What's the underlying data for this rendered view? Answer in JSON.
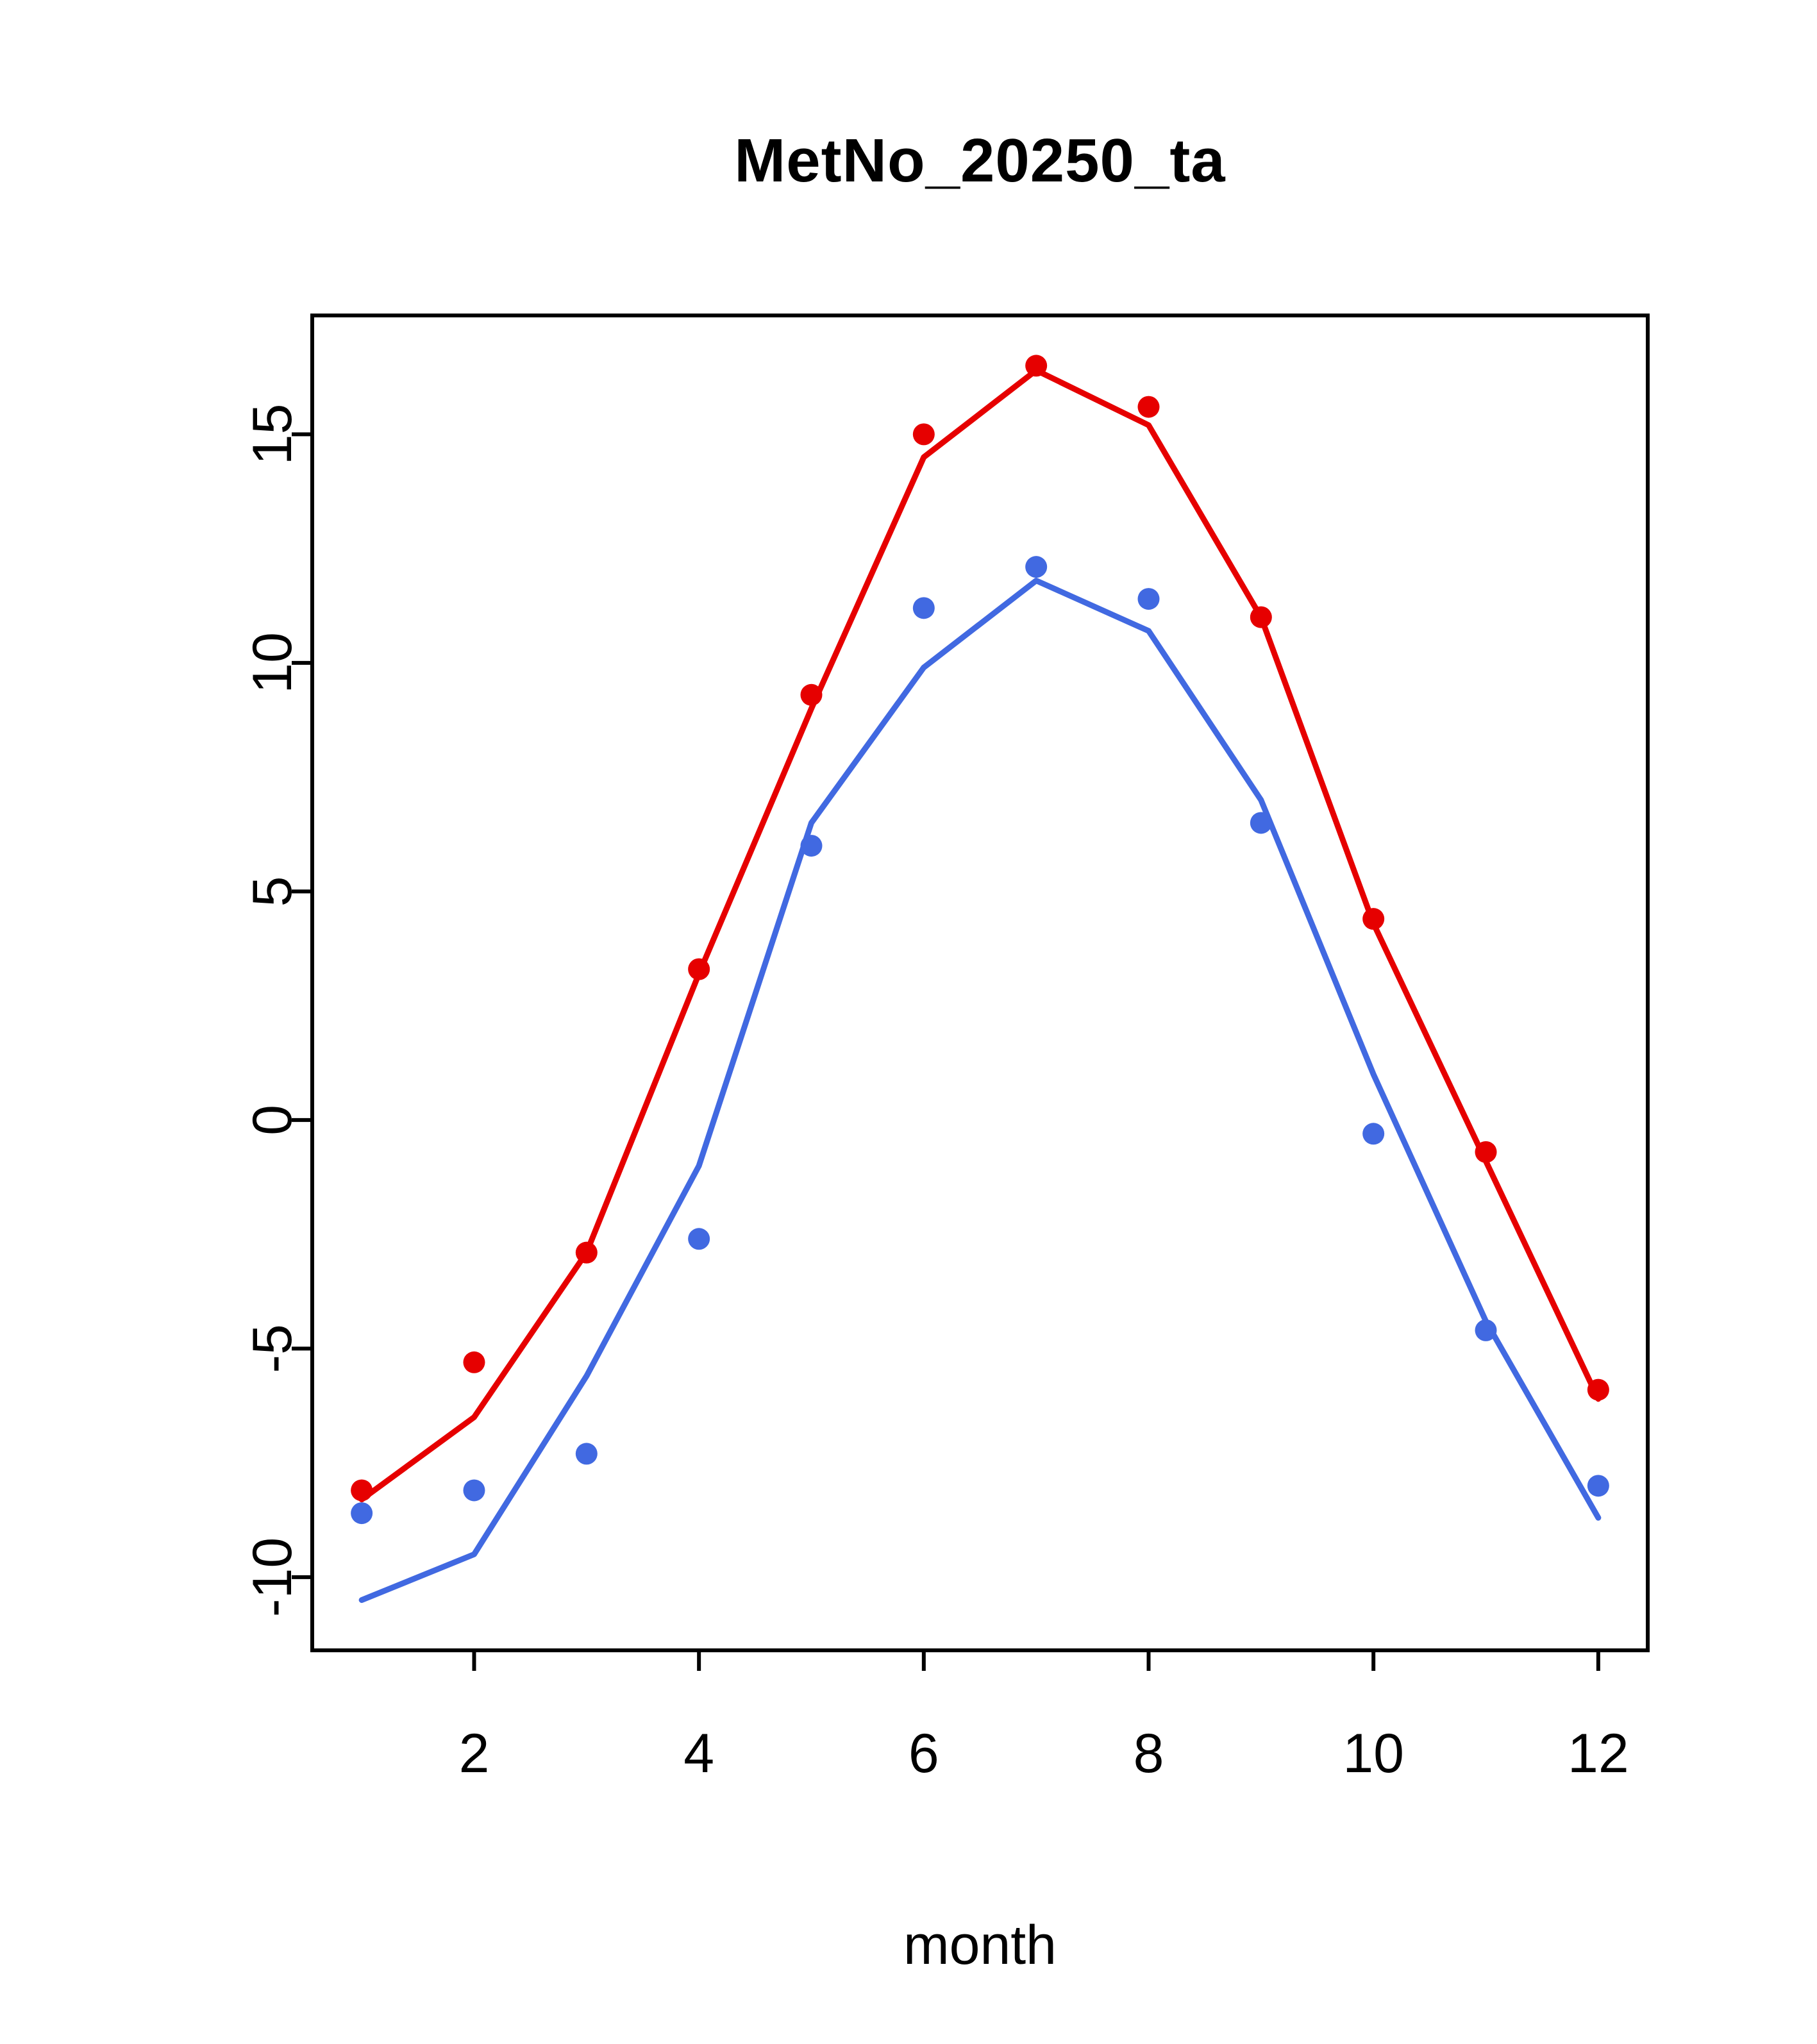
{
  "chart_data": {
    "type": "line",
    "title": "MetNo_20250_ta",
    "xlabel": "month",
    "ylabel": "",
    "grid": false,
    "legend": "none",
    "x": [
      1,
      2,
      3,
      4,
      5,
      6,
      7,
      8,
      9,
      10,
      11,
      12
    ],
    "xticks": [
      2,
      4,
      6,
      8,
      10,
      12
    ],
    "yticks": [
      -10,
      -5,
      0,
      5,
      10,
      15
    ],
    "xlim": [
      0.56,
      12.44
    ],
    "ylim": [
      -11.6,
      17.6
    ],
    "colors": {
      "red": "#e60000",
      "blue": "#4169e1",
      "axis": "#000000",
      "background": "#ffffff"
    },
    "series": [
      {
        "name": "red-line",
        "style": "line",
        "color": "#e60000",
        "values": [
          -8.3,
          -6.5,
          -2.9,
          3.2,
          9.0,
          14.5,
          16.4,
          15.2,
          11.0,
          4.3,
          -0.9,
          -6.1
        ]
      },
      {
        "name": "blue-line",
        "style": "line",
        "color": "#4169e1",
        "values": [
          -10.5,
          -9.5,
          -5.6,
          -1.0,
          6.5,
          9.9,
          11.8,
          10.7,
          7.0,
          1.0,
          -4.4,
          -8.7
        ]
      },
      {
        "name": "red-points",
        "style": "points",
        "color": "#e60000",
        "values": [
          -8.1,
          -5.3,
          -2.9,
          3.3,
          9.3,
          15.0,
          16.5,
          15.6,
          11.0,
          4.4,
          -0.7,
          -5.9
        ]
      },
      {
        "name": "blue-points",
        "style": "points",
        "color": "#4169e1",
        "values": [
          -8.6,
          -8.1,
          -7.3,
          -2.6,
          6.0,
          11.2,
          12.1,
          11.4,
          6.5,
          -0.3,
          -4.6,
          -8.0
        ]
      }
    ]
  }
}
